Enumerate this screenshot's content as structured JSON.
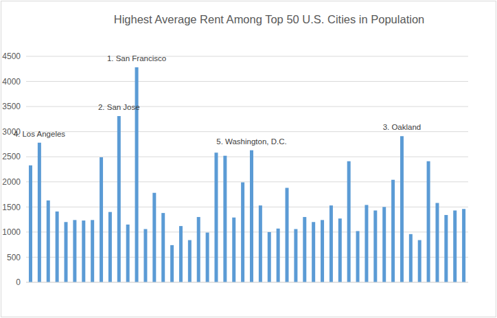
{
  "chart_data": {
    "type": "bar",
    "title": "Highest Average Rent Among Top 50 U.S. Cities in Population",
    "categories": [
      null,
      null,
      null,
      null,
      null,
      null,
      null,
      null,
      null,
      null,
      null,
      null,
      null,
      null,
      null,
      null,
      null,
      null,
      null,
      null,
      null,
      null,
      null,
      null,
      null,
      null,
      null,
      null,
      null,
      null,
      null,
      null,
      null,
      null,
      null,
      null,
      null,
      null,
      null,
      null,
      null,
      null,
      null,
      null,
      null,
      null,
      null,
      null,
      null,
      null
    ],
    "values": [
      2330,
      2780,
      1630,
      1410,
      1200,
      1240,
      1230,
      1240,
      2490,
      1400,
      3310,
      1150,
      4280,
      1060,
      1780,
      1380,
      740,
      1120,
      840,
      1300,
      990,
      2580,
      2520,
      1290,
      1990,
      2630,
      1530,
      1000,
      1070,
      1880,
      1060,
      1300,
      1200,
      1240,
      1530,
      1270,
      2410,
      1020,
      1540,
      1430,
      1500,
      2040,
      2910,
      960,
      840,
      2410,
      1580,
      1340,
      1430,
      1460
    ],
    "color": "#5b9bd5",
    "ylim": [
      0,
      4500
    ],
    "yticks": [
      0,
      500,
      1000,
      1500,
      2000,
      2500,
      3000,
      3500,
      4000,
      4500
    ],
    "grid": true,
    "tick_labels": "y",
    "annotations": [
      {
        "index": 1,
        "text": "4. Los Angeles"
      },
      {
        "index": 10,
        "text": "2. San Jose"
      },
      {
        "index": 12,
        "text": "1. San Francisco"
      },
      {
        "index": 25,
        "text": "5. Washington, D.C."
      },
      {
        "index": 42,
        "text": "3. Oakland"
      }
    ]
  }
}
